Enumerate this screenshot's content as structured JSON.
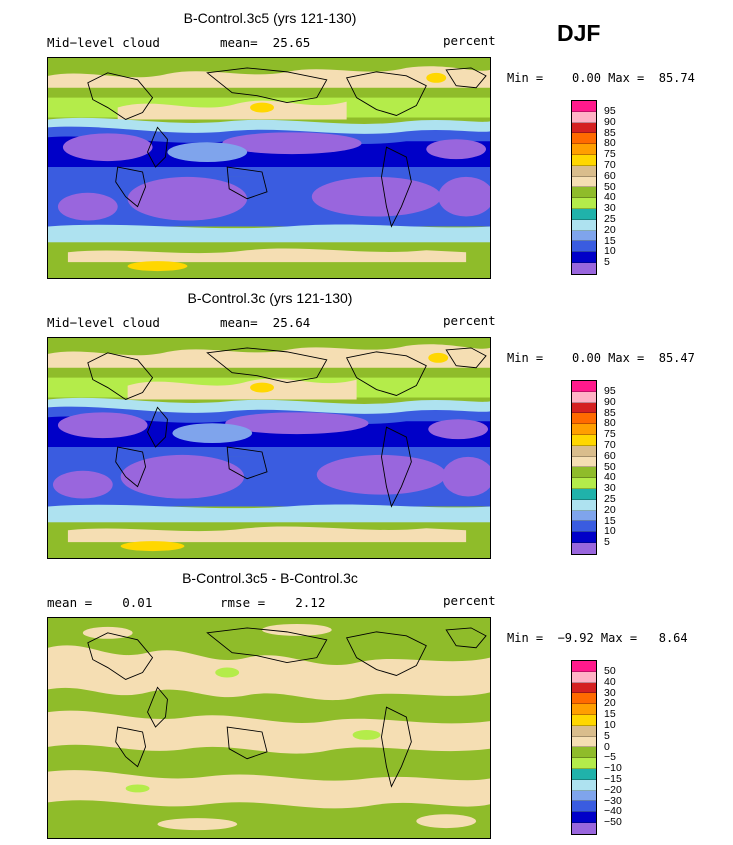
{
  "season": "DJF",
  "panels": [
    {
      "title": "B-Control.3c5 (yrs 121-130)",
      "left_label": "Mid−level cloud",
      "center_label": "mean=  25.65",
      "right_label": "percent",
      "minmax": "Min =    0.00 Max =  85.74",
      "levels": [
        "95",
        "90",
        "85",
        "80",
        "75",
        "70",
        "60",
        "50",
        "40",
        "30",
        "25",
        "20",
        "15",
        "10",
        "5"
      ]
    },
    {
      "title": "B-Control.3c (yrs 121-130)",
      "left_label": "Mid−level cloud",
      "center_label": "mean=  25.64",
      "right_label": "percent",
      "minmax": "Min =    0.00 Max =  85.47",
      "levels": [
        "95",
        "90",
        "85",
        "80",
        "75",
        "70",
        "60",
        "50",
        "40",
        "30",
        "25",
        "20",
        "15",
        "10",
        "5"
      ]
    },
    {
      "title": "B-Control.3c5 - B-Control.3c",
      "left_label": "mean =    0.01",
      "center_label": "rmse =    2.12",
      "right_label": "percent",
      "minmax": "Min =  −9.92 Max =   8.64",
      "levels": [
        "50",
        "40",
        "30",
        "20",
        "15",
        "10",
        "5",
        "0",
        "−5",
        "−10",
        "−15",
        "−20",
        "−30",
        "−40",
        "−50"
      ]
    }
  ],
  "colors": {
    "abs": [
      "#ff1a8c",
      "#ffb3c6",
      "#d42121",
      "#ff6a00",
      "#ff9f00",
      "#ffd700",
      "#d9bd8c",
      "#f5deb3",
      "#8fbc2a",
      "#b4ec4a",
      "#20b2aa",
      "#aee2f0",
      "#7fa4ec",
      "#3a5ce0",
      "#0000c8",
      "#9966dd"
    ],
    "diff": [
      "#ff1a8c",
      "#ffb3c6",
      "#d42121",
      "#ff6a00",
      "#ff9f00",
      "#ffd700",
      "#d9bd8c",
      "#f5deb3",
      "#8fbc2a",
      "#b4ec4a",
      "#20b2aa",
      "#aee2f0",
      "#7fa4ec",
      "#3a5ce0",
      "#0000c8",
      "#9966dd"
    ]
  },
  "chart_data": [
    {
      "type": "heatmap",
      "title": "B-Control.3c5 (yrs 121-130)",
      "variable": "Mid-level cloud",
      "units": "percent",
      "mean": 25.65,
      "min": 0.0,
      "max": 85.74,
      "contour_levels": [
        5,
        10,
        15,
        20,
        25,
        30,
        40,
        50,
        60,
        70,
        75,
        80,
        85,
        90,
        95
      ]
    },
    {
      "type": "heatmap",
      "title": "B-Control.3c (yrs 121-130)",
      "variable": "Mid-level cloud",
      "units": "percent",
      "mean": 25.64,
      "min": 0.0,
      "max": 85.47,
      "contour_levels": [
        5,
        10,
        15,
        20,
        25,
        30,
        40,
        50,
        60,
        70,
        75,
        80,
        85,
        90,
        95
      ]
    },
    {
      "type": "heatmap",
      "title": "B-Control.3c5 - B-Control.3c",
      "units": "percent",
      "mean": 0.01,
      "rmse": 2.12,
      "min": -9.92,
      "max": 8.64,
      "contour_levels": [
        -50,
        -40,
        -30,
        -20,
        -15,
        -10,
        -5,
        0,
        5,
        10,
        15,
        20,
        30,
        40,
        50
      ]
    }
  ]
}
